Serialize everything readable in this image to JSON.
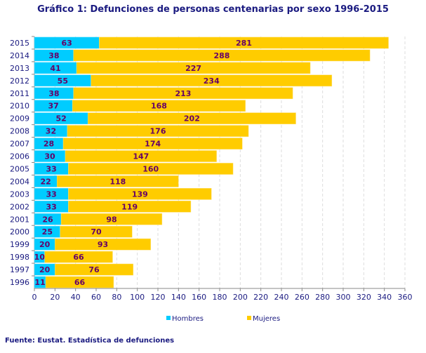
{
  "chart_data": {
    "type": "bar",
    "orientation": "horizontal",
    "stacked": true,
    "title": "Gráfico 1: Defunciones de personas centenarias por sexo 1996-2015",
    "source": "Fuente: Eustat. Estadística de defunciones",
    "categories": [
      "2015",
      "2014",
      "2013",
      "2012",
      "2011",
      "2010",
      "2009",
      "2008",
      "2007",
      "2006",
      "2005",
      "2004",
      "2003",
      "2002",
      "2001",
      "2000",
      "1999",
      "1998",
      "1997",
      "1996"
    ],
    "series": [
      {
        "name": "Hombres",
        "color": "#00ccff",
        "values": [
          63,
          38,
          41,
          55,
          38,
          37,
          52,
          32,
          28,
          30,
          33,
          22,
          33,
          33,
          26,
          25,
          20,
          10,
          20,
          11
        ]
      },
      {
        "name": "Mujeres",
        "color": "#ffcc00",
        "values": [
          281,
          288,
          227,
          234,
          213,
          168,
          202,
          176,
          174,
          147,
          160,
          118,
          139,
          119,
          98,
          70,
          93,
          66,
          76,
          66
        ]
      }
    ],
    "xlim": [
      0,
      360
    ],
    "xticks": [
      "0",
      "20",
      "40",
      "60",
      "80",
      "100",
      "120",
      "140",
      "160",
      "180",
      "200",
      "220",
      "240",
      "260",
      "280",
      "300",
      "320",
      "340",
      "360"
    ],
    "grid": true,
    "legend": "bottom",
    "label_color": "#660066",
    "text_color": "#1a1a80"
  }
}
